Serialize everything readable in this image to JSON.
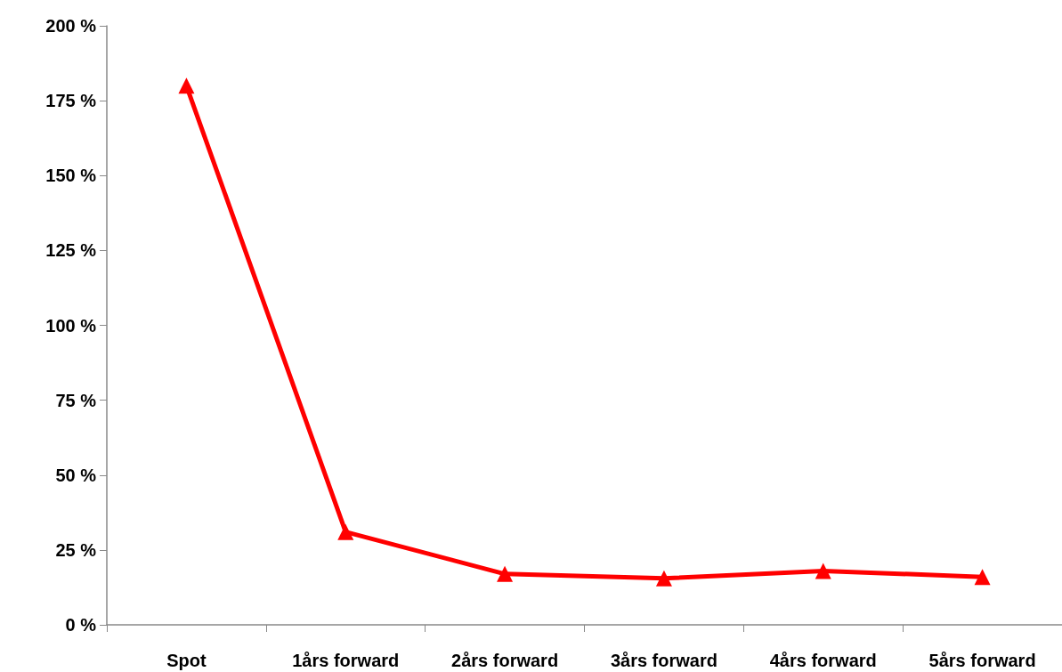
{
  "chart_data": {
    "type": "line",
    "categories": [
      "Spot",
      "1års forward",
      "2års forward",
      "3års forward",
      "4års forward",
      "5års forward"
    ],
    "series": [
      {
        "color": "#ff0000",
        "values": [
          180,
          31,
          17,
          15.5,
          18,
          16
        ]
      }
    ],
    "ylim": [
      0,
      200
    ],
    "yticks": [
      {
        "value": 0,
        "label": "0 %"
      },
      {
        "value": 25,
        "label": "25 %"
      },
      {
        "value": 50,
        "label": "50 %"
      },
      {
        "value": 75,
        "label": "75 %"
      },
      {
        "value": 100,
        "label": "100 %"
      },
      {
        "value": 125,
        "label": "125 %"
      },
      {
        "value": 150,
        "label": "150 %"
      },
      {
        "value": 175,
        "label": "175 %"
      },
      {
        "value": 200,
        "label": "200 %"
      }
    ],
    "grid": false,
    "marker": "triangle",
    "line_style": "solid"
  }
}
